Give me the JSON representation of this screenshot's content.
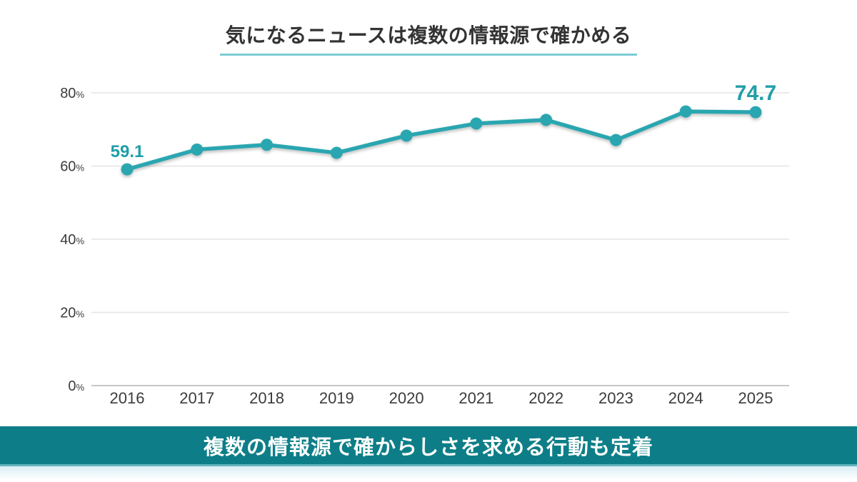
{
  "title": {
    "text": "気になるニュースは複数の情報源で確かめる"
  },
  "banner": {
    "text": "複数の情報源で確からしさを求める行動も定着"
  },
  "colors": {
    "line": "#2AA6B0",
    "point": "#2AA6B0",
    "data_label": "#219EA8",
    "gridline": "#E4E4E4",
    "axis_line": "#C7C7C7",
    "tick_text": "#3C3C3C",
    "title_text": "#333333",
    "title_underline": "#7CCDD3",
    "banner_bg": "#0D7E88",
    "banner_border": "#5FB3BD",
    "banner_text": "#FFFFFF"
  },
  "chart_data": {
    "type": "line",
    "title": "気になるニュースは複数の情報源で確かめる",
    "categories": [
      "2016",
      "2017",
      "2018",
      "2019",
      "2020",
      "2021",
      "2022",
      "2023",
      "2024",
      "2025"
    ],
    "values": [
      59.1,
      64.5,
      65.8,
      63.6,
      68.3,
      71.6,
      72.6,
      67.1,
      74.9,
      74.7
    ],
    "xlabel": "",
    "ylabel": "",
    "ylim": [
      0,
      80
    ],
    "yticks": [
      0,
      20,
      40,
      60,
      80
    ],
    "ytick_suffix": "%",
    "grid": true,
    "legend": false,
    "annotations": [
      {
        "category": "2016",
        "text": "59.1",
        "position": "above",
        "font_size": 24
      },
      {
        "category": "2025",
        "text": "74.7",
        "position": "above",
        "font_size": 30
      }
    ]
  }
}
